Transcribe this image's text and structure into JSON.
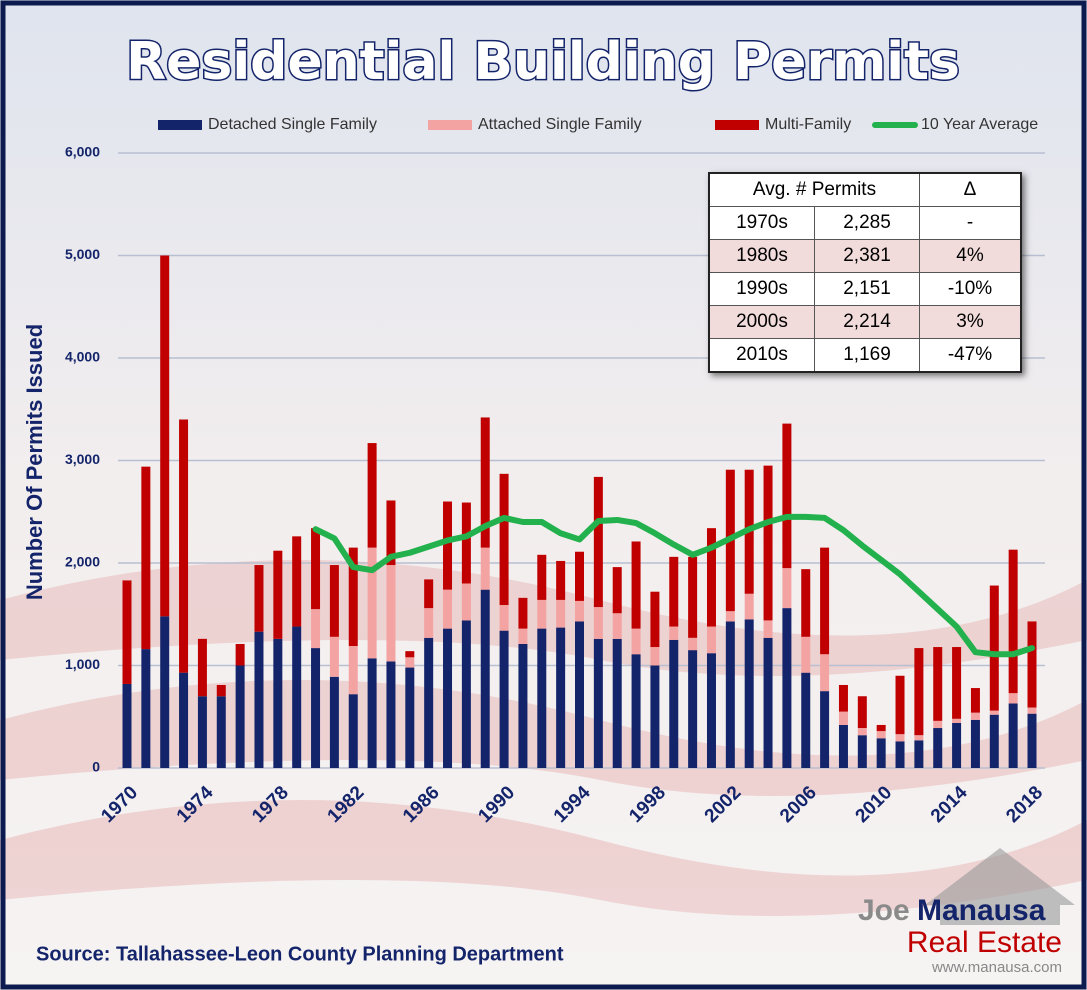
{
  "chart_data": {
    "type": "bar",
    "stacked": true,
    "title": "Residential Building Permits",
    "y_label": "Number Of Permits Issued",
    "source": "Source: Tallahassee-Leon County Planning Department",
    "x": [
      1970,
      1971,
      1972,
      1973,
      1974,
      1975,
      1976,
      1977,
      1978,
      1979,
      1980,
      1981,
      1982,
      1983,
      1984,
      1985,
      1986,
      1987,
      1988,
      1989,
      1990,
      1991,
      1992,
      1993,
      1994,
      1995,
      1996,
      1997,
      1998,
      1999,
      2000,
      2001,
      2002,
      2003,
      2004,
      2005,
      2006,
      2007,
      2008,
      2009,
      2010,
      2011,
      2012,
      2013,
      2014,
      2015,
      2016,
      2017,
      2018
    ],
    "xlim": [
      1970,
      2018
    ],
    "xticks": [
      1970,
      1974,
      1978,
      1982,
      1986,
      1990,
      1994,
      1998,
      2002,
      2006,
      2010,
      2014,
      2018
    ],
    "ylim": [
      0,
      6000
    ],
    "yticks": [
      0,
      {
        "value": 1000,
        "label": "1,000"
      },
      {
        "value": 2000,
        "label": "2,000"
      },
      {
        "value": 3000,
        "label": "3,000"
      },
      {
        "value": 4000,
        "label": "4,000"
      },
      {
        "value": 5000,
        "label": "5,000"
      },
      {
        "value": 6000,
        "label": "6,000"
      }
    ],
    "grid": true,
    "legend": "top",
    "series": [
      {
        "name": "Detached Single Family",
        "color": "#14246a",
        "values": [
          820,
          1160,
          1480,
          930,
          700,
          700,
          1000,
          1330,
          1260,
          1380,
          1170,
          890,
          720,
          1070,
          1040,
          980,
          1270,
          1360,
          1440,
          1740,
          1340,
          1210,
          1360,
          1370,
          1430,
          1260,
          1260,
          1110,
          1000,
          1250,
          1150,
          1120,
          1430,
          1450,
          1270,
          1560,
          930,
          750,
          420,
          320,
          290,
          260,
          270,
          390,
          440,
          470,
          520,
          630,
          530
        ]
      },
      {
        "name": "Attached Single Family",
        "color": "#f4a3a3",
        "values": [
          0,
          0,
          0,
          0,
          0,
          0,
          0,
          0,
          0,
          0,
          380,
          390,
          470,
          1080,
          940,
          100,
          290,
          380,
          360,
          410,
          250,
          150,
          280,
          270,
          200,
          310,
          250,
          250,
          180,
          130,
          120,
          260,
          100,
          250,
          170,
          390,
          350,
          360,
          130,
          70,
          70,
          70,
          50,
          70,
          40,
          70,
          40,
          100,
          60
        ]
      },
      {
        "name": "Multi-Family",
        "color": "#c00000",
        "values": [
          1010,
          1780,
          3520,
          2470,
          560,
          110,
          210,
          650,
          860,
          880,
          790,
          700,
          960,
          1020,
          630,
          60,
          280,
          860,
          790,
          1270,
          1280,
          300,
          440,
          380,
          480,
          1270,
          450,
          850,
          540,
          680,
          790,
          960,
          1380,
          1210,
          1510,
          1410,
          660,
          1040,
          260,
          310,
          60,
          570,
          850,
          720,
          700,
          240,
          1220,
          1400,
          840
        ]
      },
      {
        "name": "10 Year Average",
        "type": "line",
        "color": "#22b14c",
        "values": [
          null,
          null,
          null,
          null,
          null,
          null,
          null,
          null,
          null,
          null,
          2330,
          2240,
          1960,
          1930,
          2060,
          2100,
          2160,
          2220,
          2260,
          2360,
          2440,
          2400,
          2400,
          2290,
          2230,
          2410,
          2420,
          2390,
          2290,
          2180,
          2080,
          2150,
          2240,
          2330,
          2400,
          2450,
          2450,
          2440,
          2320,
          2170,
          2030,
          1890,
          1720,
          1550,
          1380,
          1130,
          1110,
          1110,
          1170
        ]
      }
    ]
  },
  "table": {
    "header": [
      "Avg. # Permits",
      "Δ"
    ],
    "rows": [
      [
        "1970s",
        "2,285",
        "-"
      ],
      [
        "1980s",
        "2,381",
        "4%"
      ],
      [
        "1990s",
        "2,151",
        "-10%"
      ],
      [
        "2000s",
        "2,214",
        "3%"
      ],
      [
        "2010s",
        "1,169",
        "-47%"
      ]
    ]
  },
  "logo": {
    "first": "Joe",
    "last": "Manausa",
    "line2": "Real Estate",
    "url": "www.manausa.com"
  }
}
